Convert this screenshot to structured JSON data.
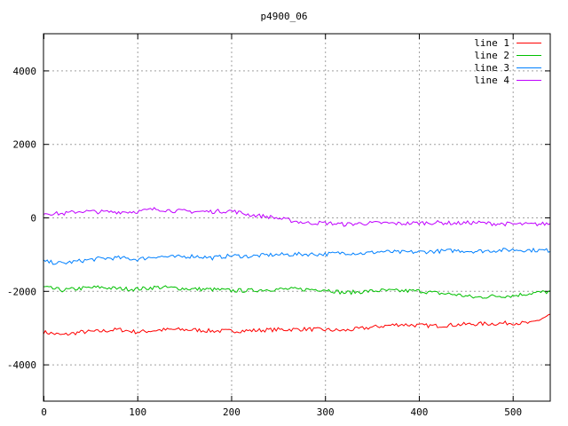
{
  "chart_data": {
    "type": "line",
    "title": "p4900_06",
    "xlabel": "",
    "ylabel": "",
    "xlim": [
      0,
      540
    ],
    "ylim": [
      -5000,
      5000
    ],
    "xticks": [
      0,
      100,
      200,
      300,
      400,
      500
    ],
    "yticks": [
      -4000,
      -2000,
      0,
      2000,
      4000
    ],
    "grid": true,
    "legend_position": "top-right",
    "series": [
      {
        "name": "line 1",
        "color": "#ff0000",
        "x": [
          0,
          20,
          40,
          60,
          80,
          100,
          120,
          140,
          160,
          180,
          200,
          220,
          240,
          260,
          280,
          300,
          320,
          340,
          360,
          380,
          400,
          420,
          440,
          460,
          480,
          500,
          520,
          540
        ],
        "values": [
          -3120,
          -3200,
          -3120,
          -3100,
          -3050,
          -3120,
          -3070,
          -3050,
          -3060,
          -3090,
          -3090,
          -3080,
          -3060,
          -3050,
          -3040,
          -3060,
          -3080,
          -3020,
          -2960,
          -2910,
          -2940,
          -2950,
          -2920,
          -2900,
          -2890,
          -2870,
          -2880,
          -2650
        ]
      },
      {
        "name": "line 2",
        "color": "#00c000",
        "x": [
          0,
          20,
          40,
          60,
          80,
          100,
          120,
          140,
          160,
          180,
          200,
          220,
          240,
          260,
          280,
          300,
          320,
          340,
          360,
          380,
          400,
          420,
          440,
          460,
          480,
          500,
          520,
          540
        ],
        "values": [
          -1900,
          -1980,
          -1930,
          -1900,
          -1940,
          -1950,
          -1900,
          -1920,
          -1950,
          -1960,
          -1990,
          -1990,
          -1960,
          -1950,
          -1960,
          -1960,
          -2050,
          -2020,
          -1990,
          -2000,
          -2000,
          -2060,
          -2100,
          -2180,
          -2140,
          -2130,
          -2060,
          -2020
        ]
      },
      {
        "name": "line 3",
        "color": "#0080ff",
        "x": [
          0,
          20,
          40,
          60,
          80,
          100,
          120,
          140,
          160,
          180,
          200,
          220,
          240,
          260,
          280,
          300,
          320,
          340,
          360,
          380,
          400,
          420,
          440,
          460,
          480,
          500,
          520,
          540
        ],
        "values": [
          -1200,
          -1250,
          -1180,
          -1120,
          -1100,
          -1140,
          -1060,
          -1080,
          -1050,
          -1100,
          -1040,
          -1060,
          -1020,
          -1010,
          -1000,
          -1000,
          -960,
          -980,
          -930,
          -950,
          -940,
          -920,
          -900,
          -920,
          -900,
          -880,
          -890,
          -900
        ]
      },
      {
        "name": "line 4",
        "color": "#c000ff",
        "x": [
          0,
          20,
          40,
          60,
          80,
          100,
          120,
          140,
          160,
          180,
          200,
          220,
          240,
          260,
          280,
          300,
          320,
          340,
          360,
          380,
          400,
          420,
          440,
          460,
          480,
          500,
          520,
          540
        ],
        "values": [
          120,
          100,
          170,
          150,
          150,
          160,
          230,
          180,
          160,
          160,
          180,
          70,
          20,
          -70,
          -150,
          -150,
          -190,
          -160,
          -150,
          -170,
          -150,
          -140,
          -160,
          -140,
          -170,
          -180,
          -190,
          -170
        ]
      }
    ]
  }
}
